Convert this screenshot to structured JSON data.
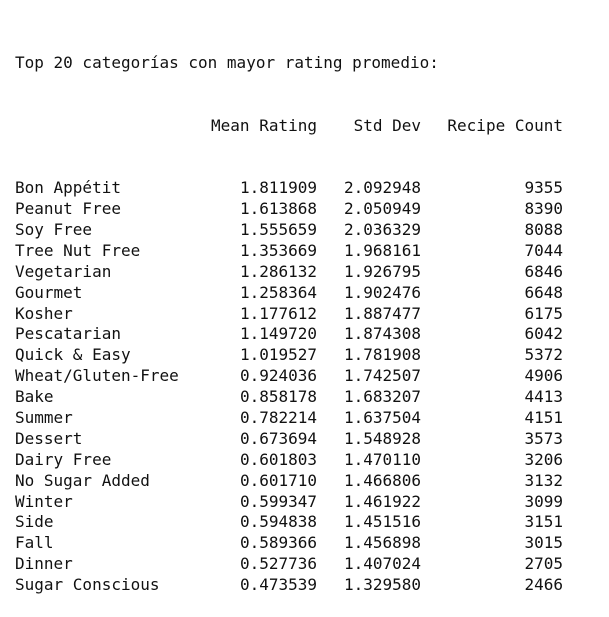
{
  "output": {
    "title": "Top 20 categorías con mayor rating promedio:",
    "columns": {
      "index": "",
      "mean": "Mean Rating",
      "std": "Std Dev",
      "count": "Recipe Count"
    },
    "rows": [
      {
        "name": "Bon Appétit",
        "mean": "1.811909",
        "std": "2.092948",
        "count": "9355"
      },
      {
        "name": "Peanut Free",
        "mean": "1.613868",
        "std": "2.050949",
        "count": "8390"
      },
      {
        "name": "Soy Free",
        "mean": "1.555659",
        "std": "2.036329",
        "count": "8088"
      },
      {
        "name": "Tree Nut Free",
        "mean": "1.353669",
        "std": "1.968161",
        "count": "7044"
      },
      {
        "name": "Vegetarian",
        "mean": "1.286132",
        "std": "1.926795",
        "count": "6846"
      },
      {
        "name": "Gourmet",
        "mean": "1.258364",
        "std": "1.902476",
        "count": "6648"
      },
      {
        "name": "Kosher",
        "mean": "1.177612",
        "std": "1.887477",
        "count": "6175"
      },
      {
        "name": "Pescatarian",
        "mean": "1.149720",
        "std": "1.874308",
        "count": "6042"
      },
      {
        "name": "Quick & Easy",
        "mean": "1.019527",
        "std": "1.781908",
        "count": "5372"
      },
      {
        "name": "Wheat/Gluten-Free",
        "mean": "0.924036",
        "std": "1.742507",
        "count": "4906"
      },
      {
        "name": "Bake",
        "mean": "0.858178",
        "std": "1.683207",
        "count": "4413"
      },
      {
        "name": "Summer",
        "mean": "0.782214",
        "std": "1.637504",
        "count": "4151"
      },
      {
        "name": "Dessert",
        "mean": "0.673694",
        "std": "1.548928",
        "count": "3573"
      },
      {
        "name": "Dairy Free",
        "mean": "0.601803",
        "std": "1.470110",
        "count": "3206"
      },
      {
        "name": "No Sugar Added",
        "mean": "0.601710",
        "std": "1.466806",
        "count": "3132"
      },
      {
        "name": "Winter",
        "mean": "0.599347",
        "std": "1.461922",
        "count": "3099"
      },
      {
        "name": "Side",
        "mean": "0.594838",
        "std": "1.451516",
        "count": "3151"
      },
      {
        "name": "Fall",
        "mean": "0.589366",
        "std": "1.456898",
        "count": "3015"
      },
      {
        "name": "Dinner",
        "mean": "0.527736",
        "std": "1.407024",
        "count": "2705"
      },
      {
        "name": "Sugar Conscious",
        "mean": "0.473539",
        "std": "1.329580",
        "count": "2466"
      }
    ]
  }
}
